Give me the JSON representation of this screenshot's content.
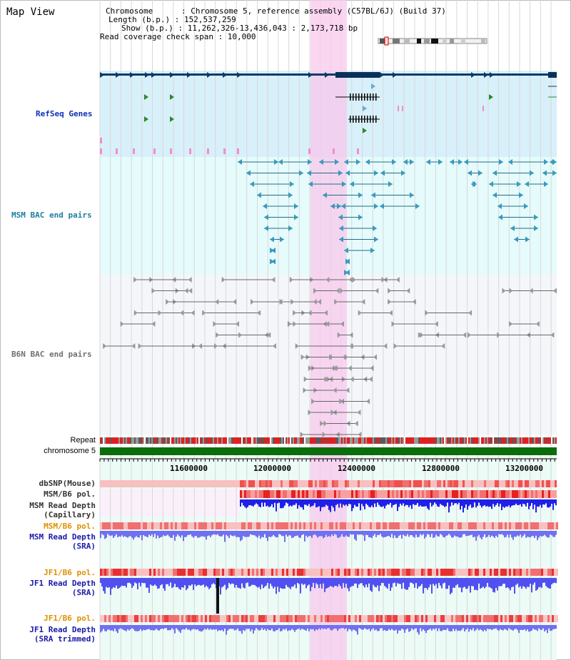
{
  "header": {
    "title": "Map View",
    "info": {
      "chromosome": "Chromosome      : Chromosome 5, reference assembly (C57BL/6J) (Build 37)",
      "length": "Length (b.p.) : 152,537,259",
      "show": "Show (b.p.) : 11,262,326-13,436,043 : 2,173,718 bp",
      "coverage": "Read coverage check span : 10,000"
    }
  },
  "tracks": {
    "refseq": "RefSeq Genes",
    "msm_bac": "MSM BAC end pairs",
    "b6n_bac": "B6N BAC end pairs",
    "repeat": "Repeat",
    "chromosome": "chromosome 5",
    "dbsnp": "dbSNP(Mouse)",
    "msm_b6_pol": "MSM/B6 pol.",
    "msm_depth_cap_1": "MSM Read Depth",
    "msm_depth_cap_2": "(Capillary)",
    "msm_b6_pol_2": "MSM/B6 pol.",
    "msm_depth_sra_1": "MSM Read Depth",
    "msm_depth_sra_2": "(SRA)",
    "jf1_b6_pol": "JF1/B6 pol.",
    "jf1_depth_sra_1": "JF1 Read Depth",
    "jf1_depth_sra_2": "(SRA)",
    "jf1_b6_pol_2": "JF1/B6 pol.",
    "jf1_depth_trim_1": "JF1 Read Depth",
    "jf1_depth_trim_2": "(SRA trimmed)"
  },
  "axis": {
    "ticks": [
      "11600000",
      "12000000",
      "12400000",
      "12800000",
      "13200000"
    ]
  },
  "colors": {
    "refseq_bg": "#d8f0fa",
    "msm_bg": "#e6fbfb",
    "b6n_bg": "#f4f6fa",
    "highlight": "#f8d8f0",
    "chrom_bar": "#0a6e0a",
    "depth_blue": "#2020e8",
    "pol_red": "#e83030"
  }
}
